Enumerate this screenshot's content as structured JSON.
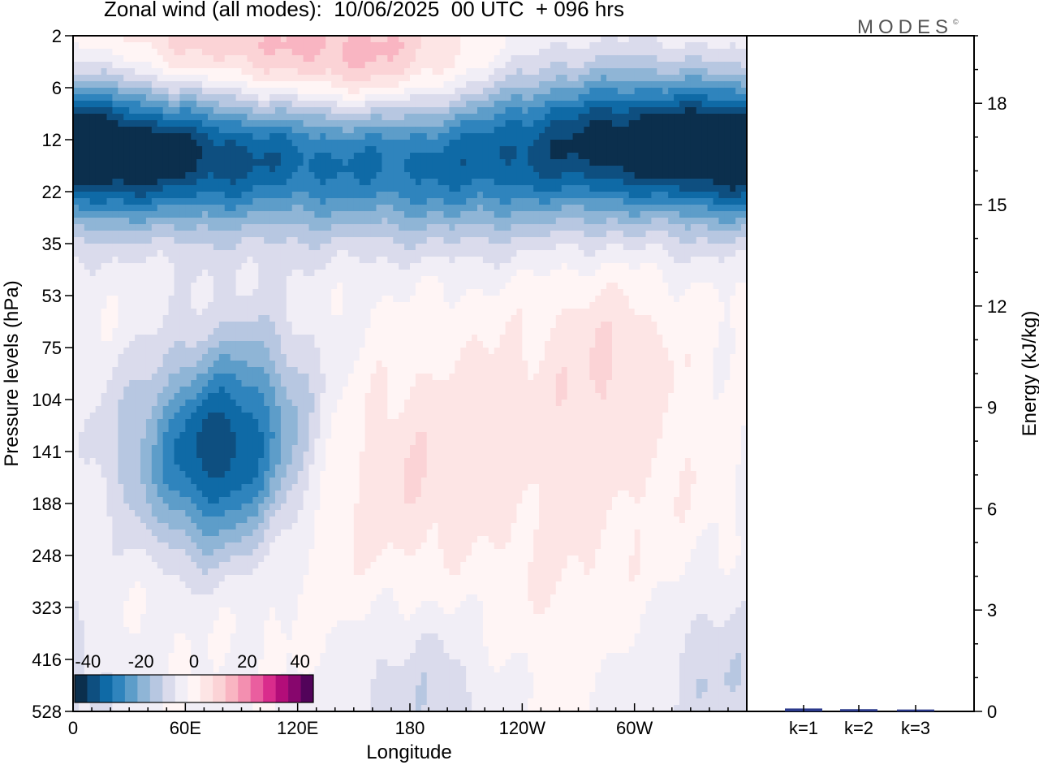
{
  "title": "Zonal wind (all modes):  10/06/2025  00 UTC  + 096 hrs",
  "logo": "MODES",
  "logo_mark": "©",
  "colors": {
    "palette": [
      "#0b2f4d",
      "#0e4f80",
      "#0f6aa6",
      "#2f84bd",
      "#5d9dc9",
      "#8fb5d6",
      "#b7c7e1",
      "#dadbec",
      "#f1eef6",
      "#fff5f5",
      "#fde5e5",
      "#fbd3d6",
      "#f9b5c2",
      "#f38fb0",
      "#ea5e9f",
      "#d92c8c",
      "#b30d79",
      "#87066d",
      "#52035a"
    ],
    "frame": "#000000",
    "bars": "#2b3a8c"
  },
  "chart_data": [
    {
      "type": "heatmap",
      "variable": "Zonal wind (all modes)",
      "xlabel": "Longitude",
      "ylabel": "Pressure levels (hPa)",
      "x_ticks": [
        "0",
        "60E",
        "120E",
        "180",
        "120W",
        "60W"
      ],
      "x_tick_values": [
        0,
        60,
        120,
        180,
        240,
        300
      ],
      "xlim": [
        0,
        360
      ],
      "y_ticks": [
        "2",
        "6",
        "12",
        "22",
        "35",
        "53",
        "75",
        "104",
        "141",
        "188",
        "248",
        "323",
        "416",
        "528"
      ],
      "colorbar": {
        "labels": [
          "-40",
          "-20",
          "0",
          "20",
          "40"
        ],
        "label_values": [
          -40,
          -20,
          0,
          20,
          40
        ],
        "range": [
          -45,
          45
        ],
        "step": 5
      },
      "features": [
        {
          "lon": 25,
          "level_index": 2.3,
          "value": -38
        },
        {
          "lon": 95,
          "level_index": 2.5,
          "value": -32
        },
        {
          "lon": 200,
          "level_index": 2.9,
          "value": -28
        },
        {
          "lon": 280,
          "level_index": 1.9,
          "value": -36
        },
        {
          "lon": 345,
          "level_index": 2.1,
          "value": -40
        },
        {
          "lon": 160,
          "level_index": 0.6,
          "value": 12
        },
        {
          "lon": 70,
          "level_index": 0.3,
          "value": 9
        },
        {
          "lon": 75,
          "level_index": 8.2,
          "value": -28
        },
        {
          "lon": 100,
          "level_index": 7.2,
          "value": -12
        },
        {
          "lon": 175,
          "level_index": 8.5,
          "value": 9
        },
        {
          "lon": 285,
          "level_index": 6.3,
          "value": 10
        },
        {
          "lon": 220,
          "level_index": 7.0,
          "value": 6
        },
        {
          "lon": 330,
          "level_index": 8.8,
          "value": 4
        },
        {
          "lon": 15,
          "level_index": 9.2,
          "value": 4
        },
        {
          "lon": 30,
          "level_index": 8.0,
          "value": -6
        },
        {
          "lon": 185,
          "level_index": 12.6,
          "value": -7
        },
        {
          "lon": 345,
          "level_index": 12.1,
          "value": -8
        },
        {
          "lon": 260,
          "level_index": 10.8,
          "value": 5
        }
      ]
    },
    {
      "type": "bar",
      "ylabel": "Energy (kJ/kg)",
      "categories": [
        "k=1",
        "k=2",
        "k=3"
      ],
      "values": [
        0.05,
        0.03,
        0.02
      ],
      "ylim": [
        0,
        20
      ],
      "y_ticks": [
        0,
        3,
        6,
        9,
        12,
        15,
        18
      ]
    }
  ]
}
